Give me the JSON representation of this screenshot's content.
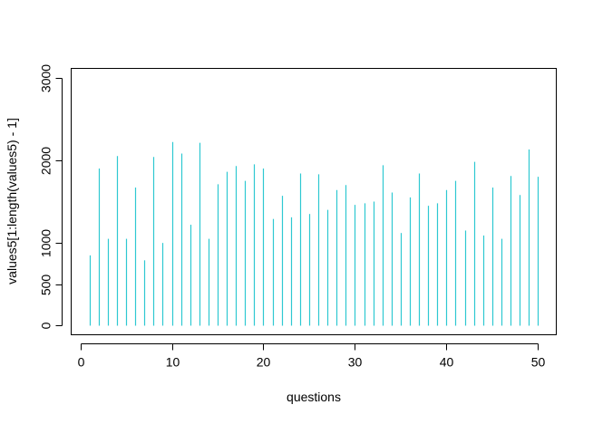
{
  "chart_data": {
    "type": "bar",
    "subtype": "histogram-lines",
    "title": "",
    "xlabel": "questions",
    "ylabel": "values5[1:length(values5) - 1]",
    "xlim": [
      -1,
      52
    ],
    "ylim": [
      -110,
      3110
    ],
    "x_ticks": [
      0,
      10,
      20,
      30,
      40,
      50
    ],
    "y_ticks": [
      0,
      500,
      1000,
      2000,
      3000
    ],
    "grid": false,
    "bar_color": "#2EC8D2",
    "series": [
      {
        "x": [
          1,
          2,
          3,
          4,
          5,
          6,
          7,
          8,
          9,
          10,
          11,
          12,
          13,
          14,
          15,
          16,
          17,
          18,
          19,
          20,
          21,
          22,
          23,
          24,
          25,
          26,
          27,
          28,
          29,
          30,
          31,
          32,
          33,
          34,
          35,
          36,
          37,
          38,
          39,
          40,
          41,
          42,
          43,
          44,
          45,
          46,
          47,
          48,
          49,
          50
        ],
        "values": [
          850,
          1900,
          1050,
          2050,
          1050,
          1670,
          790,
          2040,
          1000,
          2220,
          2080,
          1220,
          2210,
          1050,
          1710,
          1860,
          1930,
          1750,
          1950,
          1900,
          1290,
          1570,
          1310,
          1840,
          1350,
          1830,
          1400,
          1640,
          1700,
          1460,
          1480,
          1500,
          1940,
          1610,
          1120,
          1550,
          1840,
          1450,
          1480,
          1640,
          1750,
          1150,
          1980,
          1090,
          1670,
          1050,
          1810,
          1580,
          2130,
          1800
        ]
      }
    ]
  }
}
